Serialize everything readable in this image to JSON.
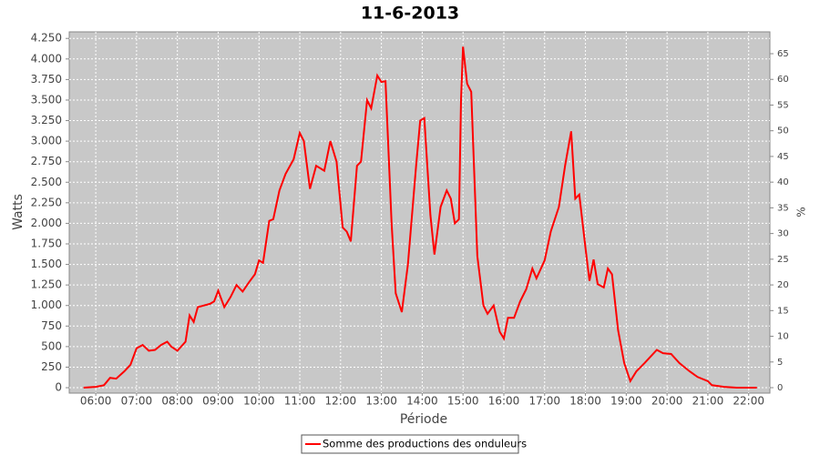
{
  "chart_data": {
    "type": "line",
    "title": "11-6-2013",
    "x_label": "Période",
    "y_label": "Watts",
    "y2_label": "%",
    "x": [
      5.7,
      6.0,
      6.2,
      6.35,
      6.5,
      6.7,
      6.85,
      7.0,
      7.15,
      7.3,
      7.45,
      7.6,
      7.75,
      7.85,
      8.0,
      8.2,
      8.3,
      8.4,
      8.5,
      8.65,
      8.8,
      8.9,
      9.0,
      9.15,
      9.3,
      9.45,
      9.6,
      9.75,
      9.9,
      10.0,
      10.1,
      10.25,
      10.35,
      10.5,
      10.65,
      10.85,
      11.0,
      11.1,
      11.25,
      11.4,
      11.6,
      11.75,
      11.9,
      12.05,
      12.15,
      12.25,
      12.4,
      12.5,
      12.65,
      12.75,
      12.9,
      13.0,
      13.1,
      13.25,
      13.35,
      13.5,
      13.65,
      13.85,
      13.95,
      14.05,
      14.2,
      14.3,
      14.45,
      14.6,
      14.7,
      14.8,
      14.9,
      14.95,
      15.0,
      15.1,
      15.2,
      15.35,
      15.5,
      15.6,
      15.75,
      15.9,
      16.0,
      16.1,
      16.25,
      16.4,
      16.55,
      16.7,
      16.8,
      17.0,
      17.15,
      17.35,
      17.5,
      17.65,
      17.75,
      17.85,
      18.0,
      18.1,
      18.2,
      18.3,
      18.45,
      18.55,
      18.65,
      18.8,
      18.95,
      19.1,
      19.25,
      19.45,
      19.6,
      19.75,
      19.9,
      20.1,
      20.3,
      20.55,
      20.75,
      21.0,
      21.1,
      21.4,
      21.7,
      22.2
    ],
    "series": [
      {
        "name": "Somme des productions des onduleurs",
        "color": "#ff0000",
        "values": [
          0,
          10,
          30,
          120,
          110,
          200,
          280,
          480,
          520,
          450,
          460,
          520,
          560,
          500,
          450,
          560,
          880,
          800,
          980,
          1000,
          1020,
          1050,
          1180,
          980,
          1100,
          1250,
          1170,
          1280,
          1380,
          1550,
          1520,
          2030,
          2050,
          2400,
          2600,
          2780,
          3100,
          3000,
          2420,
          2700,
          2640,
          3000,
          2750,
          1950,
          1900,
          1780,
          2700,
          2750,
          3500,
          3400,
          3800,
          3720,
          3730,
          2000,
          1150,
          920,
          1500,
          2700,
          3250,
          3280,
          2100,
          1620,
          2200,
          2400,
          2300,
          2000,
          2050,
          3500,
          4150,
          3700,
          3600,
          1600,
          1000,
          900,
          1000,
          680,
          600,
          850,
          850,
          1050,
          1200,
          1450,
          1330,
          1550,
          1900,
          2200,
          2700,
          3120,
          2300,
          2350,
          1700,
          1300,
          1560,
          1260,
          1220,
          1450,
          1380,
          700,
          300,
          80,
          200,
          300,
          380,
          460,
          420,
          410,
          300,
          200,
          130,
          80,
          30,
          10,
          0,
          0
        ]
      }
    ],
    "xlim": [
      5.35,
      22.52
    ],
    "xticks": [
      {
        "value": 6,
        "label": "06:00"
      },
      {
        "value": 7,
        "label": "07:00"
      },
      {
        "value": 8,
        "label": "08:00"
      },
      {
        "value": 9,
        "label": "09:00"
      },
      {
        "value": 10,
        "label": "10:00"
      },
      {
        "value": 11,
        "label": "11:00"
      },
      {
        "value": 12,
        "label": "12:00"
      },
      {
        "value": 13,
        "label": "13:00"
      },
      {
        "value": 14,
        "label": "14:00"
      },
      {
        "value": 15,
        "label": "15:00"
      },
      {
        "value": 16,
        "label": "16:00"
      },
      {
        "value": 17,
        "label": "17:00"
      },
      {
        "value": 18,
        "label": "18:00"
      },
      {
        "value": 19,
        "label": "19:00"
      },
      {
        "value": 20,
        "label": "20:00"
      },
      {
        "value": 21,
        "label": "21:00"
      },
      {
        "value": 22,
        "label": "22:00"
      }
    ],
    "ylim": [
      -66,
      4330
    ],
    "yticks": [
      0,
      250,
      500,
      750,
      {
        "value": 1000,
        "label": "1.000"
      },
      {
        "value": 1250,
        "label": "1.250"
      },
      {
        "value": 1500,
        "label": "1.500"
      },
      {
        "value": 1750,
        "label": "1.750"
      },
      {
        "value": 2000,
        "label": "2.000"
      },
      {
        "value": 2250,
        "label": "2.250"
      },
      {
        "value": 2500,
        "label": "2.500"
      },
      {
        "value": 2750,
        "label": "2.750"
      },
      {
        "value": 3000,
        "label": "3.000"
      },
      {
        "value": 3250,
        "label": "3.250"
      },
      {
        "value": 3500,
        "label": "3.500"
      },
      {
        "value": 3750,
        "label": "3.750"
      },
      {
        "value": 4000,
        "label": "4.000"
      },
      {
        "value": 4250,
        "label": "4.250"
      }
    ],
    "y2lim": [
      -1.06,
      69.25
    ],
    "y2ticks": [
      0,
      5,
      10,
      15,
      20,
      25,
      30,
      35,
      40,
      45,
      50,
      55,
      60,
      65
    ],
    "grid": true
  }
}
